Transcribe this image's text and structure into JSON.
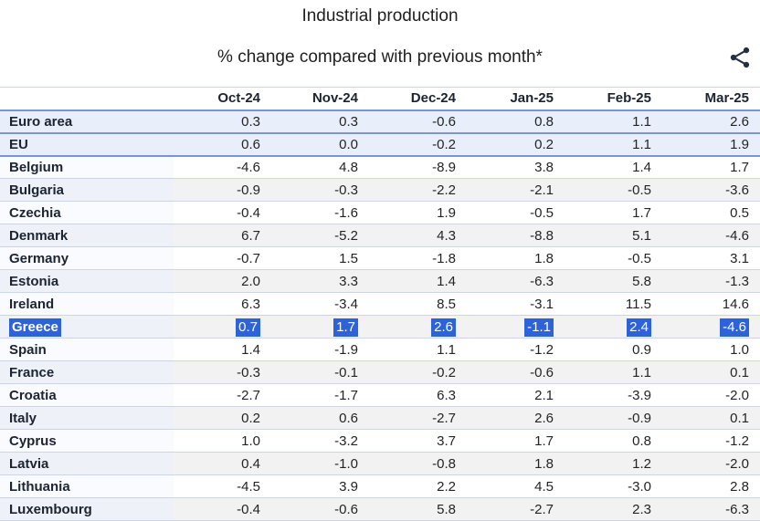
{
  "header": {
    "title": "Industrial production",
    "subtitle": "% change compared with previous month*"
  },
  "toolbar": {
    "share_icon": "share-icon"
  },
  "colors": {
    "strong_border": "#7a94d4",
    "light_border": "#ccd6e9",
    "aggregate_row_bg": "#e8eefa",
    "stripe_row_bg": "#f2f2f2",
    "name_column_tint_light": "#fafbfe",
    "name_column_tint_dark": "#eef1f8",
    "selection_bg": "#2d62d9",
    "selection_text": "#ffffff",
    "bold_text": "#1b2430",
    "number_text": "#242424",
    "icon_color": "#223041"
  },
  "chart_data": {
    "type": "table",
    "title": "Industrial production",
    "subtitle": "% change compared with previous month*",
    "columns": [
      "Oct-24",
      "Nov-24",
      "Dec-24",
      "Jan-25",
      "Feb-25",
      "Mar-25"
    ],
    "highlighted_row": "Greece",
    "rows": [
      {
        "name": "Euro area",
        "type": "aggregate",
        "values": [
          0.3,
          0.3,
          -0.6,
          0.8,
          1.1,
          2.6
        ]
      },
      {
        "name": "EU",
        "type": "aggregate",
        "values": [
          0.6,
          0.0,
          -0.2,
          0.2,
          1.1,
          1.9
        ]
      },
      {
        "name": "Belgium",
        "type": "country",
        "values": [
          -4.6,
          4.8,
          -8.9,
          3.8,
          1.4,
          1.7
        ]
      },
      {
        "name": "Bulgaria",
        "type": "country",
        "values": [
          -0.9,
          -0.3,
          -2.2,
          -2.1,
          -0.5,
          -3.6
        ]
      },
      {
        "name": "Czechia",
        "type": "country",
        "values": [
          -0.4,
          -1.6,
          1.9,
          -0.5,
          1.7,
          0.5
        ]
      },
      {
        "name": "Denmark",
        "type": "country",
        "values": [
          6.7,
          -5.2,
          4.3,
          -8.8,
          5.1,
          -4.6
        ]
      },
      {
        "name": "Germany",
        "type": "country",
        "values": [
          -0.7,
          1.5,
          -1.8,
          1.8,
          -0.5,
          3.1
        ]
      },
      {
        "name": "Estonia",
        "type": "country",
        "values": [
          2.0,
          3.3,
          1.4,
          -6.3,
          5.8,
          -1.3
        ]
      },
      {
        "name": "Ireland",
        "type": "country",
        "values": [
          6.3,
          -3.4,
          8.5,
          -3.1,
          11.5,
          14.6
        ]
      },
      {
        "name": "Greece",
        "type": "country",
        "selected": true,
        "values": [
          0.7,
          1.7,
          2.6,
          -1.1,
          2.4,
          -4.6
        ]
      },
      {
        "name": "Spain",
        "type": "country",
        "values": [
          1.4,
          -1.9,
          1.1,
          -1.2,
          0.9,
          1.0
        ]
      },
      {
        "name": "France",
        "type": "country",
        "values": [
          -0.3,
          -0.1,
          -0.2,
          -0.6,
          1.1,
          0.1
        ]
      },
      {
        "name": "Croatia",
        "type": "country",
        "values": [
          -2.7,
          -1.7,
          6.3,
          2.1,
          -3.9,
          -2.0
        ]
      },
      {
        "name": "Italy",
        "type": "country",
        "values": [
          0.2,
          0.6,
          -2.7,
          2.6,
          -0.9,
          0.1
        ]
      },
      {
        "name": "Cyprus",
        "type": "country",
        "values": [
          1.0,
          -3.2,
          3.7,
          1.7,
          0.8,
          -1.2
        ]
      },
      {
        "name": "Latvia",
        "type": "country",
        "values": [
          0.4,
          -1.0,
          -0.8,
          1.8,
          1.2,
          -2.0
        ]
      },
      {
        "name": "Lithuania",
        "type": "country",
        "values": [
          -4.5,
          3.9,
          2.2,
          4.5,
          -3.0,
          2.8
        ]
      },
      {
        "name": "Luxembourg",
        "type": "country",
        "values": [
          -0.4,
          -0.6,
          5.8,
          -2.7,
          2.3,
          -6.3
        ]
      }
    ]
  }
}
